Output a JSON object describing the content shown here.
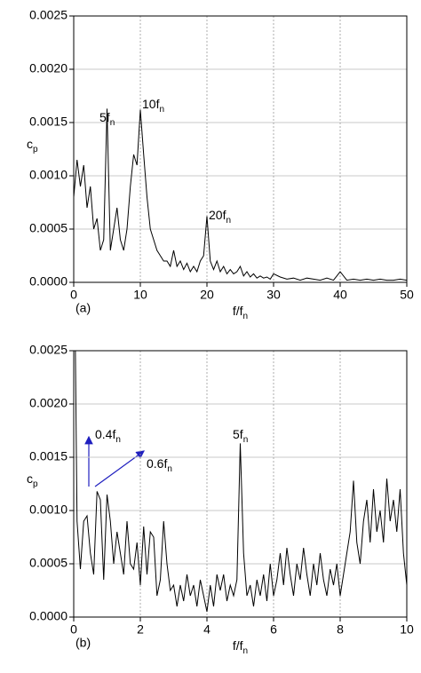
{
  "chart_data": [
    {
      "type": "line",
      "panel_label": "(a)",
      "xlabel": {
        "text": "f/f",
        "subscript": "n"
      },
      "ylabel": {
        "text": "c",
        "subscript": "p"
      },
      "x": [
        0,
        0.5,
        1,
        1.5,
        2,
        2.5,
        3,
        3.5,
        4,
        4.5,
        5,
        5.5,
        6,
        6.5,
        7,
        7.5,
        8,
        8.5,
        9,
        9.5,
        10,
        10.5,
        11,
        11.5,
        12,
        12.5,
        13,
        13.5,
        14,
        14.5,
        15,
        15.5,
        16,
        16.5,
        17,
        17.5,
        18,
        18.5,
        19,
        19.5,
        20,
        20.5,
        21,
        21.5,
        22,
        22.5,
        23,
        23.5,
        24,
        24.5,
        25,
        25.5,
        26,
        26.5,
        27,
        27.5,
        28,
        28.5,
        29,
        29.5,
        30,
        31,
        32,
        33,
        34,
        35,
        36,
        37,
        38,
        39,
        40,
        41,
        42,
        43,
        44,
        45,
        46,
        47,
        48,
        49,
        50
      ],
      "series": [
        {
          "color": "#000000",
          "values": [
            0.0008,
            0.00115,
            0.0009,
            0.0011,
            0.0007,
            0.0009,
            0.0005,
            0.0006,
            0.0003,
            0.0004,
            0.00163,
            0.0003,
            0.0005,
            0.0007,
            0.0004,
            0.0003,
            0.0005,
            0.0009,
            0.0012,
            0.0011,
            0.00162,
            0.0012,
            0.0008,
            0.0005,
            0.0004,
            0.0003,
            0.00025,
            0.0002,
            0.0002,
            0.00015,
            0.0003,
            0.00015,
            0.0002,
            0.00012,
            0.00018,
            0.0001,
            0.00015,
            0.0001,
            0.0002,
            0.00025,
            0.00062,
            0.0002,
            0.00012,
            0.0002,
            0.0001,
            0.00015,
            8e-05,
            0.00012,
            8e-05,
            0.0001,
            0.00015,
            6e-05,
            0.0001,
            5e-05,
            8e-05,
            4e-05,
            6e-05,
            4e-05,
            5e-05,
            3e-05,
            8e-05,
            5e-05,
            3e-05,
            4e-05,
            2e-05,
            4e-05,
            3e-05,
            2e-05,
            4e-05,
            2e-05,
            0.0001,
            2e-05,
            3e-05,
            2e-05,
            3e-05,
            2e-05,
            3e-05,
            2e-05,
            2e-05,
            3e-05,
            2e-05
          ]
        }
      ],
      "xlim": [
        0,
        50
      ],
      "ylim": [
        0,
        0.0025
      ],
      "xticks": [
        0,
        10,
        20,
        30,
        40,
        50
      ],
      "yticks": [
        {
          "value": 0,
          "label": "0.0000"
        },
        {
          "value": 0.0005,
          "label": "0.0005"
        },
        {
          "value": 0.001,
          "label": "0.0010"
        },
        {
          "value": 0.0015,
          "label": "0.0015"
        },
        {
          "value": 0.002,
          "label": "0.0020"
        },
        {
          "value": 0.0025,
          "label": "0.0025"
        }
      ],
      "grid": true,
      "annotations": [
        {
          "text": "5f",
          "subscript": "n"
        },
        {
          "text": "10f",
          "subscript": "n"
        },
        {
          "text": "20f",
          "subscript": "n"
        }
      ]
    },
    {
      "type": "line",
      "panel_label": "(b)",
      "xlabel": {
        "text": "f/f",
        "subscript": "n"
      },
      "ylabel": {
        "text": "c",
        "subscript": "p"
      },
      "x": [
        0.05,
        0.1,
        0.2,
        0.3,
        0.4,
        0.5,
        0.6,
        0.7,
        0.8,
        0.9,
        1.0,
        1.1,
        1.2,
        1.3,
        1.4,
        1.5,
        1.6,
        1.7,
        1.8,
        1.9,
        2.0,
        2.1,
        2.2,
        2.3,
        2.4,
        2.5,
        2.6,
        2.7,
        2.8,
        2.9,
        3.0,
        3.1,
        3.2,
        3.3,
        3.4,
        3.5,
        3.6,
        3.7,
        3.8,
        3.9,
        4.0,
        4.1,
        4.2,
        4.3,
        4.4,
        4.5,
        4.6,
        4.7,
        4.8,
        4.9,
        5.0,
        5.1,
        5.2,
        5.3,
        5.4,
        5.5,
        5.6,
        5.7,
        5.8,
        5.9,
        6.0,
        6.1,
        6.2,
        6.3,
        6.4,
        6.5,
        6.6,
        6.7,
        6.8,
        6.9,
        7.0,
        7.1,
        7.2,
        7.3,
        7.4,
        7.5,
        7.6,
        7.7,
        7.8,
        7.9,
        8.0,
        8.1,
        8.2,
        8.3,
        8.4,
        8.5,
        8.6,
        8.7,
        8.8,
        8.9,
        9.0,
        9.1,
        9.2,
        9.3,
        9.4,
        9.5,
        9.6,
        9.7,
        9.8,
        9.9,
        10.0
      ],
      "series": [
        {
          "color": "#000000",
          "values": [
            0.0025,
            0.0009,
            0.00045,
            0.0009,
            0.00095,
            0.0006,
            0.0004,
            0.00118,
            0.0011,
            0.00035,
            0.00115,
            0.0009,
            0.0005,
            0.0008,
            0.0006,
            0.0004,
            0.0009,
            0.0005,
            0.00045,
            0.0007,
            0.0003,
            0.00085,
            0.0004,
            0.0008,
            0.00075,
            0.0002,
            0.00035,
            0.0009,
            0.0005,
            0.00025,
            0.0003,
            0.0001,
            0.0003,
            0.00015,
            0.0004,
            0.0002,
            0.0003,
            0.0001,
            0.00035,
            0.0002,
            5e-05,
            0.0003,
            0.0001,
            0.0004,
            0.00025,
            0.0004,
            0.00015,
            0.0003,
            0.0002,
            0.00035,
            0.00163,
            0.0006,
            0.0002,
            0.0003,
            0.0001,
            0.00035,
            0.0002,
            0.0004,
            0.00015,
            0.0005,
            0.0002,
            0.00035,
            0.0006,
            0.0003,
            0.00065,
            0.0004,
            0.0002,
            0.0005,
            0.00035,
            0.00065,
            0.0004,
            0.0002,
            0.0005,
            0.0003,
            0.0006,
            0.00035,
            0.0002,
            0.00045,
            0.0003,
            0.0005,
            0.0002,
            0.0004,
            0.0006,
            0.0008,
            0.00128,
            0.0007,
            0.0005,
            0.0009,
            0.0011,
            0.0007,
            0.0012,
            0.0008,
            0.001,
            0.0007,
            0.0013,
            0.0009,
            0.0011,
            0.0008,
            0.0012,
            0.0006,
            0.0003
          ]
        }
      ],
      "xlim": [
        0,
        10
      ],
      "ylim": [
        0,
        0.0025
      ],
      "xticks": [
        0,
        2,
        4,
        6,
        8,
        10
      ],
      "yticks": [
        {
          "value": 0,
          "label": "0.0000"
        },
        {
          "value": 0.0005,
          "label": "0.0005"
        },
        {
          "value": 0.001,
          "label": "0.0010"
        },
        {
          "value": 0.0015,
          "label": "0.0015"
        },
        {
          "value": 0.002,
          "label": "0.0020"
        },
        {
          "value": 0.0025,
          "label": "0.0025"
        }
      ],
      "grid": true,
      "annotations": [
        {
          "text": "0.4f",
          "subscript": "n"
        },
        {
          "text": "0.6f",
          "subscript": "n"
        },
        {
          "text": "5f",
          "subscript": "n"
        }
      ]
    }
  ]
}
